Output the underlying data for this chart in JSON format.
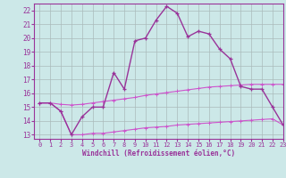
{
  "xlabel": "Windchill (Refroidissement éolien,°C)",
  "x": [
    0,
    1,
    2,
    3,
    4,
    5,
    6,
    7,
    8,
    9,
    10,
    11,
    12,
    13,
    14,
    15,
    16,
    17,
    18,
    19,
    20,
    21,
    22,
    23
  ],
  "y_main": [
    15.3,
    15.3,
    14.7,
    13.0,
    14.3,
    15.0,
    15.0,
    17.5,
    16.3,
    19.8,
    20.0,
    21.3,
    22.3,
    21.8,
    20.1,
    20.5,
    20.3,
    19.2,
    18.5,
    16.5,
    16.3,
    16.3,
    15.0,
    13.7
  ],
  "y_upper": [
    15.3,
    15.3,
    15.2,
    15.15,
    15.2,
    15.3,
    15.4,
    15.5,
    15.6,
    15.7,
    15.85,
    15.95,
    16.05,
    16.15,
    16.25,
    16.35,
    16.45,
    16.5,
    16.55,
    16.6,
    16.65,
    16.65,
    16.65,
    16.65
  ],
  "y_lower": [
    15.3,
    15.3,
    14.7,
    13.0,
    13.0,
    13.1,
    13.1,
    13.2,
    13.3,
    13.4,
    13.5,
    13.55,
    13.6,
    13.7,
    13.75,
    13.8,
    13.85,
    13.9,
    13.95,
    14.0,
    14.05,
    14.1,
    14.15,
    13.7
  ],
  "color_main": "#993399",
  "color_band": "#cc55cc",
  "bg_color": "#cce8e8",
  "grid_color": "#aabbbb",
  "xlim": [
    -0.5,
    23
  ],
  "ylim": [
    12.7,
    22.5
  ],
  "yticks": [
    13,
    14,
    15,
    16,
    17,
    18,
    19,
    20,
    21,
    22
  ],
  "xticks": [
    0,
    1,
    2,
    3,
    4,
    5,
    6,
    7,
    8,
    9,
    10,
    11,
    12,
    13,
    14,
    15,
    16,
    17,
    18,
    19,
    20,
    21,
    22,
    23
  ]
}
